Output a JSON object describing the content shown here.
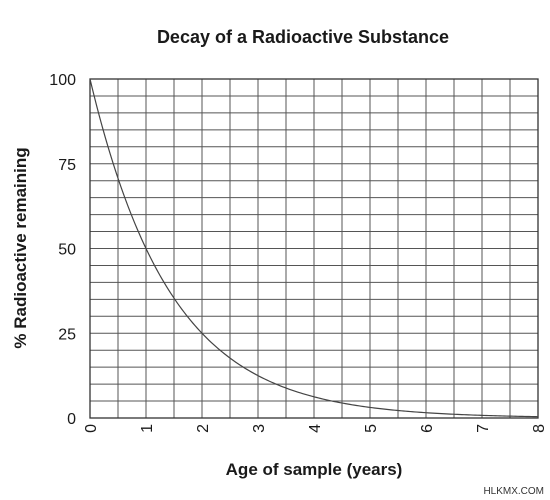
{
  "chart_data": {
    "type": "line",
    "title": "Decay of a Radioactive Substance",
    "xlabel": "Age of sample (years)",
    "ylabel": "% Radioactive remaining",
    "xlim": [
      0,
      8
    ],
    "ylim": [
      0,
      100
    ],
    "x_ticks": [
      "0",
      "1",
      "2",
      "3",
      "4",
      "5",
      "6",
      "7",
      "8"
    ],
    "y_ticks": [
      "0",
      "25",
      "50",
      "75",
      "100"
    ],
    "x_minor_step": 0.5,
    "y_minor_step": 5,
    "grid": true,
    "half_life_years": 1,
    "series": [
      {
        "name": "",
        "x": [
          0,
          0.5,
          1,
          1.5,
          2,
          2.5,
          3,
          3.5,
          4,
          4.5,
          5,
          5.5,
          6,
          6.5,
          7,
          7.5,
          8
        ],
        "values": [
          100,
          70.7,
          50,
          35.4,
          25,
          17.7,
          12.5,
          8.8,
          6.25,
          4.4,
          3.1,
          2.2,
          1.6,
          1.1,
          0.8,
          0.55,
          0.4
        ]
      }
    ],
    "colors": {
      "grid": "#555555",
      "axis": "#333333",
      "line": "#444444",
      "text": "#1a1a1a"
    }
  },
  "watermark": "HLKMX.COM"
}
